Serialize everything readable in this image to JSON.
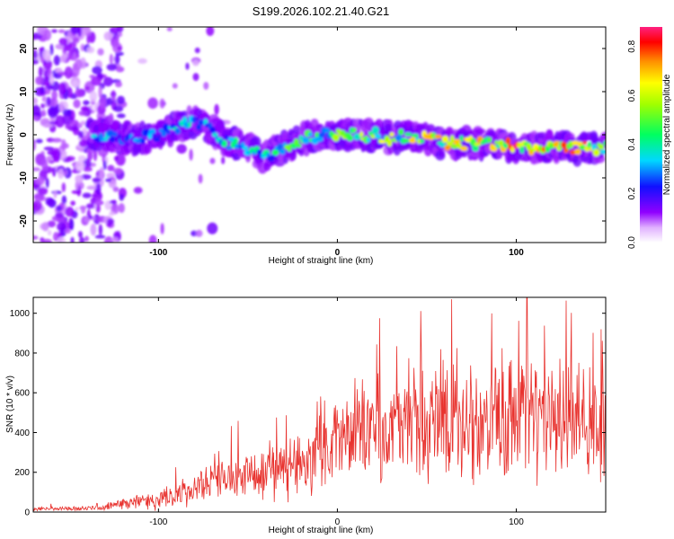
{
  "title": "S199.2026.102.21.40.G21",
  "chart_data": [
    {
      "type": "heatmap",
      "xlabel": "Height of straight line (km)",
      "ylabel": "Frequency (Hz)",
      "xlim": [
        -170,
        150
      ],
      "ylim": [
        -25,
        25
      ],
      "x_ticks": [
        -100,
        0,
        100
      ],
      "y_ticks": [
        -20,
        -10,
        0,
        10,
        20
      ],
      "colorbar": {
        "label": "Normalized spectral amplitude",
        "range": [
          0.0,
          0.88
        ],
        "ticks": [
          "0.0",
          "0.2",
          "0.4",
          "0.6",
          "0.8"
        ]
      },
      "ridge": {
        "x": [
          -130,
          -115,
          -100,
          -90,
          -80,
          -70,
          -60,
          -50,
          -40,
          -30,
          -20,
          -10,
          0,
          10,
          20,
          30,
          40,
          50,
          60,
          70,
          80,
          90,
          100,
          110,
          120,
          130,
          140,
          148
        ],
        "freq_hz": [
          0,
          -1,
          0,
          2,
          3,
          1,
          -2,
          -3,
          -5,
          -3,
          -1,
          0,
          0,
          0,
          0,
          -1,
          0,
          -1,
          -2,
          -2,
          -2,
          -2,
          -3,
          -3,
          -3,
          -3,
          -3,
          -3
        ],
        "peak_amplitude": [
          0.35,
          0.3,
          0.35,
          0.4,
          0.4,
          0.35,
          0.45,
          0.45,
          0.4,
          0.5,
          0.6,
          0.55,
          0.6,
          0.6,
          0.65,
          0.6,
          0.65,
          0.7,
          0.7,
          0.7,
          0.75,
          0.75,
          0.85,
          0.85,
          0.88,
          0.8,
          0.75,
          0.7
        ]
      }
    },
    {
      "type": "line",
      "xlabel": "Height of straight line (km)",
      "ylabel": "SNR (10 * v/v)",
      "xlim": [
        -170,
        150
      ],
      "ylim": [
        0,
        1080
      ],
      "x_ticks": [
        -100,
        0,
        100
      ],
      "y_ticks": [
        0,
        200,
        400,
        600,
        800,
        1000
      ],
      "color": "#e8332f",
      "envelope": {
        "x": [
          -170,
          -130,
          -120,
          -100,
          -80,
          -60,
          -40,
          -20,
          0,
          20,
          40,
          60,
          80,
          100,
          120,
          140,
          150
        ],
        "mean": [
          15,
          20,
          40,
          60,
          110,
          170,
          200,
          250,
          380,
          420,
          450,
          470,
          470,
          480,
          480,
          470,
          460
        ],
        "amp": [
          10,
          12,
          30,
          50,
          80,
          110,
          130,
          180,
          200,
          250,
          280,
          300,
          300,
          330,
          300,
          300,
          280
        ]
      },
      "peak": {
        "x": 106,
        "y": 1080
      }
    }
  ]
}
